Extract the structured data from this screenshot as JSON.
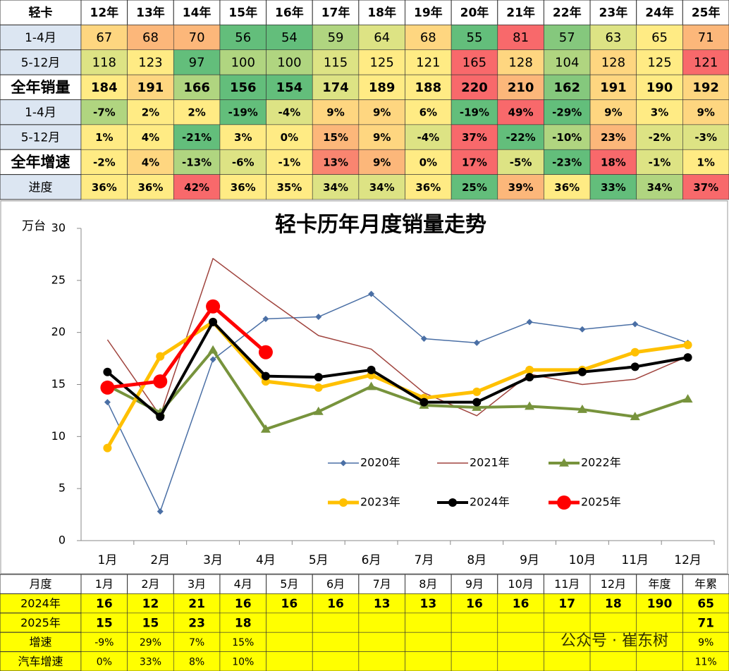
{
  "top_table": {
    "header": [
      "轻卡",
      "12年",
      "13年",
      "14年",
      "15年",
      "16年",
      "17年",
      "18年",
      "19年",
      "20年",
      "21年",
      "22年",
      "23年",
      "24年",
      "25年"
    ],
    "rows": [
      {
        "label": "1-4月",
        "cells": [
          "67",
          "68",
          "70",
          "56",
          "54",
          "59",
          "64",
          "68",
          "55",
          "81",
          "57",
          "63",
          "65",
          "71"
        ]
      },
      {
        "label": "5-12月",
        "cells": [
          "118",
          "123",
          "97",
          "100",
          "100",
          "115",
          "125",
          "121",
          "165",
          "128",
          "104",
          "128",
          "125",
          "121"
        ]
      },
      {
        "label": "全年销量",
        "cells": [
          "184",
          "191",
          "166",
          "156",
          "154",
          "174",
          "189",
          "188",
          "220",
          "210",
          "162",
          "191",
          "190",
          "192"
        ]
      },
      {
        "label": "1-4月",
        "cells": [
          "-7%",
          "2%",
          "2%",
          "-19%",
          "-4%",
          "9%",
          "9%",
          "6%",
          "-19%",
          "49%",
          "-29%",
          "9%",
          "3%",
          "9%"
        ]
      },
      {
        "label": "5-12月",
        "cells": [
          "1%",
          "4%",
          "-21%",
          "3%",
          "0%",
          "15%",
          "9%",
          "-4%",
          "37%",
          "-22%",
          "-10%",
          "23%",
          "-2%",
          "-3%"
        ]
      },
      {
        "label": "全年增速",
        "cells": [
          "-2%",
          "4%",
          "-13%",
          "-6%",
          "-1%",
          "13%",
          "9%",
          "0%",
          "17%",
          "-5%",
          "-23%",
          "18%",
          "-1%",
          "1%"
        ]
      },
      {
        "label": "进度",
        "cells": [
          "36%",
          "36%",
          "42%",
          "36%",
          "35%",
          "34%",
          "34%",
          "36%",
          "25%",
          "39%",
          "36%",
          "33%",
          "34%",
          "37%"
        ]
      }
    ]
  },
  "chart_data": {
    "type": "line",
    "title": "轻卡历年月度销量走势",
    "y_label": "万台",
    "categories": [
      "1月",
      "2月",
      "3月",
      "4月",
      "5月",
      "6月",
      "7月",
      "8月",
      "9月",
      "10月",
      "11月",
      "12月"
    ],
    "ylim": [
      0,
      30
    ],
    "yticks": [
      0,
      5,
      10,
      15,
      20,
      25,
      30
    ],
    "series": [
      {
        "name": "2020年",
        "color": "#4a6fa5",
        "marker": "diamond",
        "values": [
          13.3,
          2.8,
          17.4,
          21.3,
          21.5,
          23.7,
          19.4,
          19.0,
          21.0,
          20.3,
          20.8,
          19.0
        ]
      },
      {
        "name": "2021年",
        "color": "#a0443e",
        "marker": "none",
        "values": [
          19.3,
          12.0,
          27.1,
          23.3,
          19.7,
          18.4,
          14.2,
          12.0,
          16.0,
          15.0,
          15.5,
          17.7
        ]
      },
      {
        "name": "2022年",
        "color": "#77933c",
        "marker": "triangle",
        "values": [
          14.9,
          12.3,
          18.3,
          10.7,
          12.4,
          14.8,
          13.0,
          12.8,
          12.9,
          12.6,
          11.9,
          13.6
        ]
      },
      {
        "name": "2023年",
        "color": "#ffc000",
        "marker": "circle",
        "values": [
          8.9,
          17.7,
          21.0,
          15.3,
          14.7,
          15.9,
          13.7,
          14.3,
          16.4,
          16.4,
          18.1,
          18.8
        ]
      },
      {
        "name": "2024年",
        "color": "#000000",
        "marker": "circle",
        "values": [
          16.2,
          11.9,
          21.0,
          15.8,
          15.7,
          16.4,
          13.3,
          13.3,
          15.7,
          16.2,
          16.7,
          17.6
        ]
      },
      {
        "name": "2025年",
        "color": "#ff0000",
        "marker": "circle",
        "values": [
          14.7,
          15.3,
          22.5,
          18.1,
          null,
          null,
          null,
          null,
          null,
          null,
          null,
          null
        ]
      }
    ]
  },
  "bottom_table": {
    "header": [
      "月度",
      "1月",
      "2月",
      "3月",
      "4月",
      "5月",
      "6月",
      "7月",
      "8月",
      "9月",
      "10月",
      "11月",
      "12月",
      "年度",
      "年累"
    ],
    "rows": [
      {
        "label": "2024年",
        "cells": [
          "16",
          "12",
          "21",
          "16",
          "16",
          "16",
          "13",
          "13",
          "16",
          "16",
          "17",
          "18",
          "190",
          "65"
        ]
      },
      {
        "label": "2025年",
        "cells": [
          "15",
          "15",
          "23",
          "18",
          null,
          null,
          null,
          null,
          null,
          null,
          null,
          null,
          null,
          "71"
        ]
      },
      {
        "label": "增速",
        "cells": [
          "-9%",
          "29%",
          "7%",
          "15%",
          null,
          null,
          null,
          null,
          null,
          null,
          null,
          null,
          null,
          "9%"
        ]
      },
      {
        "label": "汽车增速",
        "cells": [
          "0%",
          "33%",
          "8%",
          "10%",
          null,
          null,
          null,
          null,
          null,
          null,
          null,
          null,
          null,
          "11%"
        ]
      }
    ]
  },
  "watermark": "公众号 · 崔东树"
}
